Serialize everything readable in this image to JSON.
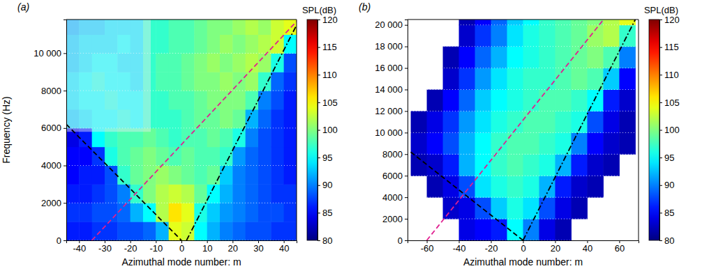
{
  "chart_data": [
    {
      "type": "heatmap",
      "panel_label": "(a)",
      "x_label": "Azimuthal mode number: m",
      "y_label": "Frequency (Hz)",
      "xlim": [
        -45,
        45
      ],
      "ylim": [
        0,
        11800
      ],
      "xticks": [
        -40,
        -30,
        -20,
        -10,
        0,
        10,
        20,
        30,
        40
      ],
      "yticks": [
        0,
        2000,
        4000,
        6000,
        8000,
        {
          "value": 10000,
          "label": "10 000"
        }
      ],
      "grid": true,
      "cells": {
        "x_edges": [
          -45,
          -40,
          -35,
          -30,
          -25,
          -20,
          -15,
          -10,
          -5,
          0,
          5,
          10,
          15,
          20,
          25,
          30,
          35,
          40,
          45
        ],
        "y_edges": [
          0,
          1000,
          2000,
          3000,
          4000,
          5000,
          6000,
          7000,
          8000,
          9000,
          10000,
          11000,
          11800
        ],
        "values": [
          [
            86,
            86,
            87,
            87,
            88,
            88,
            89,
            92,
            104,
            103,
            95,
            92,
            90,
            89,
            88,
            88,
            87,
            87
          ],
          [
            87,
            87,
            88,
            88,
            89,
            92,
            95,
            102,
            106,
            104,
            96,
            93,
            91,
            90,
            89,
            88,
            88,
            87
          ],
          [
            86,
            86,
            87,
            88,
            90,
            97,
            100,
            102,
            103,
            102,
            99,
            95,
            92,
            90,
            89,
            88,
            87,
            87
          ],
          [
            85,
            86,
            86,
            88,
            97,
            99,
            100,
            101,
            100,
            99,
            98,
            99,
            93,
            90,
            89,
            88,
            87,
            86
          ],
          [
            85,
            85,
            87,
            96,
            98,
            99,
            100,
            99,
            98,
            99,
            98,
            98,
            97,
            91,
            89,
            88,
            87,
            86
          ],
          [
            84,
            86,
            95,
            97,
            98,
            98,
            99,
            98,
            97,
            98,
            98,
            99,
            98,
            96,
            90,
            88,
            87,
            86
          ],
          [
            93,
            94,
            95,
            95,
            96,
            95,
            97,
            97,
            97,
            98,
            99,
            99,
            100,
            99,
            92,
            89,
            87,
            86
          ],
          [
            94,
            95,
            95,
            96,
            95,
            95,
            97,
            97,
            98,
            98,
            99,
            100,
            100,
            100,
            98,
            90,
            88,
            86
          ],
          [
            94,
            95,
            96,
            95,
            95,
            94,
            97,
            98,
            98,
            99,
            100,
            100,
            101,
            100,
            101,
            97,
            89,
            87
          ],
          [
            93,
            94,
            95,
            95,
            94,
            94,
            97,
            98,
            98,
            99,
            100,
            101,
            100,
            101,
            102,
            101,
            96,
            88
          ],
          [
            93,
            94,
            94,
            94,
            95,
            94,
            97,
            97,
            98,
            98,
            99,
            100,
            101,
            100,
            101,
            102,
            103,
            95
          ],
          [
            92,
            93,
            93,
            94,
            94,
            94,
            97,
            97,
            98,
            98,
            99,
            100,
            100,
            101,
            102,
            101,
            103,
            104
          ]
        ]
      },
      "shaded_region": {
        "x": [
          -45,
          -12
        ],
        "y": [
          5800,
          11800
        ],
        "color": "#e8e8f0"
      },
      "lines": [
        {
          "color": "#000000",
          "line_style": "dashed",
          "x": [
            -45,
            0
          ],
          "y": [
            6200,
            0
          ]
        },
        {
          "color": "#000000",
          "line_style": "dashdot",
          "x": [
            2,
            45
          ],
          "y": [
            0,
            11500
          ]
        },
        {
          "color": "#e02090",
          "line_style": "dashed",
          "x": [
            -35,
            45
          ],
          "y": [
            0,
            11700
          ]
        }
      ],
      "colorbar": {
        "title": "SPL(dB)",
        "range": [
          80,
          120
        ],
        "ticks": [
          80,
          85,
          90,
          95,
          100,
          105,
          110,
          115,
          120
        ]
      }
    },
    {
      "type": "heatmap",
      "panel_label": "(b)",
      "x_label": "Azimuthal mode number: m",
      "xlim": [
        -72,
        72
      ],
      "ylim": [
        0,
        20500
      ],
      "xticks": [
        -60,
        -40,
        -20,
        0,
        20,
        40,
        60
      ],
      "yticks": [
        0,
        2000,
        4000,
        6000,
        8000,
        {
          "value": 10000,
          "label": "10 000"
        },
        {
          "value": 12000,
          "label": "12 000"
        },
        {
          "value": 14000,
          "label": "14 000"
        },
        {
          "value": 16000,
          "label": "16 000"
        },
        {
          "value": 18000,
          "label": "18 000"
        },
        {
          "value": 20000,
          "label": "20 000"
        }
      ],
      "grid": true,
      "cells": {
        "x_edges": [
          -70,
          -60,
          -50,
          -40,
          -30,
          -20,
          -10,
          0,
          10,
          20,
          30,
          40,
          50,
          60,
          70
        ],
        "y_edges": [
          0,
          2000,
          4000,
          6000,
          8000,
          10000,
          12000,
          14000,
          16000,
          18000,
          20000,
          20500
        ],
        "values": [
          [
            null,
            null,
            null,
            84,
            85,
            86,
            95,
            90,
            84,
            82,
            null,
            null,
            null,
            null
          ],
          [
            null,
            null,
            83,
            84,
            88,
            93,
            96,
            94,
            88,
            84,
            82,
            null,
            null,
            null
          ],
          [
            null,
            82,
            84,
            88,
            94,
            96,
            97,
            96,
            92,
            86,
            83,
            82,
            null,
            null
          ],
          [
            82,
            83,
            86,
            92,
            95,
            97,
            98,
            97,
            96,
            92,
            86,
            83,
            82,
            null
          ],
          [
            83,
            85,
            88,
            92,
            95,
            97,
            98,
            98,
            97,
            96,
            90,
            85,
            83,
            82
          ],
          [
            82,
            84,
            87,
            91,
            94,
            96,
            97,
            98,
            98,
            97,
            96,
            88,
            84,
            82
          ],
          [
            null,
            82,
            85,
            89,
            93,
            95,
            96,
            97,
            98,
            98,
            97,
            95,
            86,
            83
          ],
          [
            null,
            null,
            83,
            87,
            91,
            94,
            96,
            97,
            97,
            98,
            99,
            98,
            93,
            85
          ],
          [
            null,
            null,
            82,
            85,
            89,
            92,
            95,
            96,
            97,
            98,
            99,
            100,
            98,
            90
          ],
          [
            null,
            null,
            null,
            83,
            87,
            90,
            94,
            96,
            97,
            98,
            99,
            101,
            102,
            97
          ],
          [
            null,
            null,
            null,
            82,
            85,
            89,
            93,
            95,
            97,
            98,
            99,
            100,
            102,
            104
          ]
        ]
      },
      "lines": [
        {
          "color": "#000000",
          "line_style": "dashed",
          "x": [
            -70,
            0
          ],
          "y": [
            8200,
            0
          ]
        },
        {
          "color": "#000000",
          "line_style": "dashdot",
          "x": [
            0,
            70
          ],
          "y": [
            0,
            20500
          ]
        },
        {
          "color": "#e02090",
          "line_style": "dashed",
          "x": [
            -60,
            50
          ],
          "y": [
            0,
            20460
          ]
        }
      ],
      "colorbar": {
        "title": "SPL(dB)",
        "range": [
          80,
          120
        ],
        "ticks": [
          80,
          85,
          90,
          95,
          100,
          105,
          110,
          115,
          120
        ]
      }
    }
  ]
}
